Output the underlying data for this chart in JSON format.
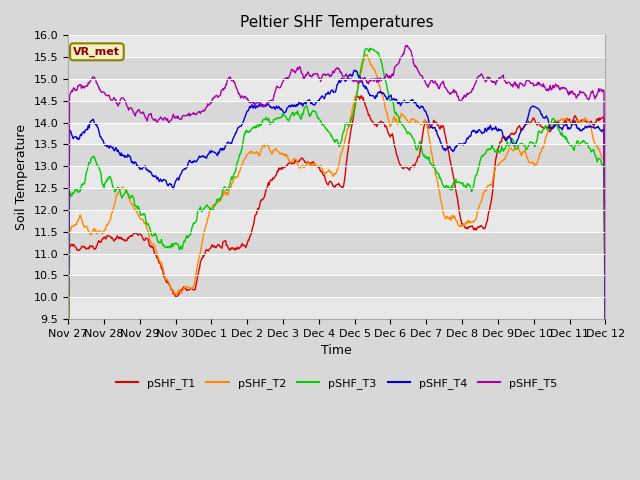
{
  "title": "Peltier SHF Temperatures",
  "ylabel": "Soil Temperature",
  "xlabel": "Time",
  "ylim": [
    9.5,
    16.0
  ],
  "yticks": [
    9.5,
    10.0,
    10.5,
    11.0,
    11.5,
    12.0,
    12.5,
    13.0,
    13.5,
    14.0,
    14.5,
    15.0,
    15.5,
    16.0
  ],
  "series_colors": {
    "pSHF_T1": "#dd0000",
    "pSHF_T2": "#ff8800",
    "pSHF_T3": "#00cc00",
    "pSHF_T4": "#0000dd",
    "pSHF_T5": "#aa00aa"
  },
  "series_names": [
    "pSHF_T1",
    "pSHF_T2",
    "pSHF_T3",
    "pSHF_T4",
    "pSHF_T5"
  ],
  "xtick_labels": [
    "Nov 27",
    "Nov 28",
    "Nov 29",
    "Nov 30",
    "Dec 1",
    "Dec 2",
    "Dec 3",
    "Dec 4",
    "Dec 5",
    "Dec 6",
    "Dec 7",
    "Dec 8",
    "Dec 9",
    "Dec 10",
    "Dec 11",
    "Dec 12"
  ],
  "annotation_label": "VR_met",
  "fig_facecolor": "#d8d8d8",
  "plot_facecolor": "#e8e8e8",
  "band_colors": [
    "#e8e8e8",
    "#d8d8d8"
  ],
  "grid_color": "#ffffff",
  "title_fontsize": 11,
  "axis_label_fontsize": 9,
  "tick_fontsize": 8,
  "linewidth": 1.0
}
